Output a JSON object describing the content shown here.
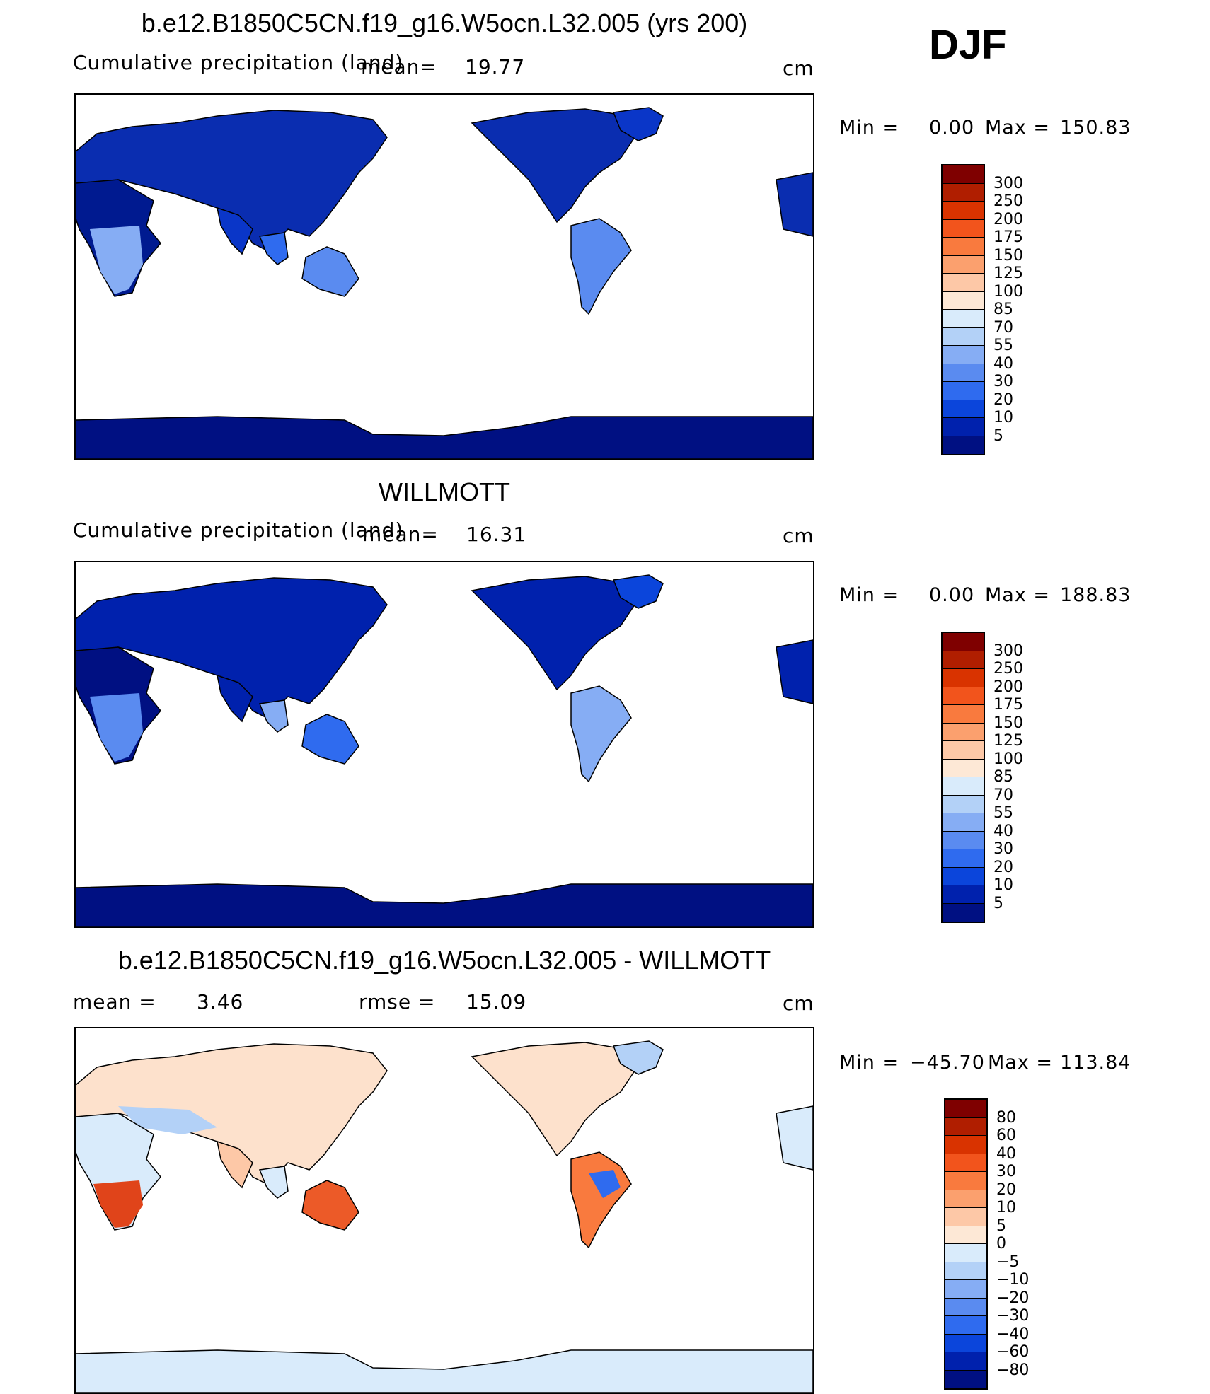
{
  "season": "DJF",
  "units": "cm",
  "panels": [
    {
      "id": "model",
      "title": "b.e12.B1850C5CN.f19_g16.W5ocn.L32.005 (yrs 200)",
      "field": "Cumulative precipitation (land)",
      "mean_label": "mean=",
      "mean_value": "19.77",
      "units": "cm",
      "min_label": "Min =",
      "min_value": "0.00",
      "max_label": "Max =",
      "max_value": "150.83",
      "colorbar": {
        "levels": [
          "300",
          "250",
          "200",
          "175",
          "150",
          "125",
          "100",
          "85",
          "70",
          "55",
          "40",
          "30",
          "20",
          "10",
          "5"
        ],
        "colors": [
          "#7f0000",
          "#b01e00",
          "#d93300",
          "#f2541c",
          "#f97a3e",
          "#fba06e",
          "#fdc8a7",
          "#fde8d6",
          "#d9ebfb",
          "#b3d1f7",
          "#86adf4",
          "#5a8bf0",
          "#2f6bef",
          "#0b45db",
          "#0021ad",
          "#001082"
        ]
      }
    },
    {
      "id": "obs",
      "title": "WILLMOTT",
      "field": "Cumulative precipitation (land)",
      "mean_label": "mean=",
      "mean_value": "16.31",
      "units": "cm",
      "min_label": "Min =",
      "min_value": "0.00",
      "max_label": "Max =",
      "max_value": "188.83",
      "colorbar": {
        "levels": [
          "300",
          "250",
          "200",
          "175",
          "150",
          "125",
          "100",
          "85",
          "70",
          "55",
          "40",
          "30",
          "20",
          "10",
          "5"
        ],
        "colors": [
          "#7f0000",
          "#b01e00",
          "#d93300",
          "#f2541c",
          "#f97a3e",
          "#fba06e",
          "#fdc8a7",
          "#fde8d6",
          "#d9ebfb",
          "#b3d1f7",
          "#86adf4",
          "#5a8bf0",
          "#2f6bef",
          "#0b45db",
          "#0021ad",
          "#001082"
        ]
      }
    },
    {
      "id": "diff",
      "title": "b.e12.B1850C5CN.f19_g16.W5ocn.L32.005 - WILLMOTT",
      "mean_label": "mean =",
      "mean_value": "3.46",
      "rmse_label": "rmse =",
      "rmse_value": "15.09",
      "units": "cm",
      "min_label": "Min =",
      "min_value": "−45.70",
      "max_label": "Max =",
      "max_value": "113.84",
      "colorbar": {
        "levels": [
          "80",
          "60",
          "40",
          "30",
          "20",
          "10",
          "5",
          "0",
          "−5",
          "−10",
          "−20",
          "−30",
          "−40",
          "−60",
          "−80"
        ],
        "colors": [
          "#7f0000",
          "#b01e00",
          "#d93300",
          "#f2541c",
          "#f97a3e",
          "#fba06e",
          "#fdc8a7",
          "#fde8d6",
          "#d9ebfb",
          "#b3d1f7",
          "#86adf4",
          "#5a8bf0",
          "#2f6bef",
          "#0b45db",
          "#0021ad",
          "#001082"
        ]
      }
    }
  ]
}
